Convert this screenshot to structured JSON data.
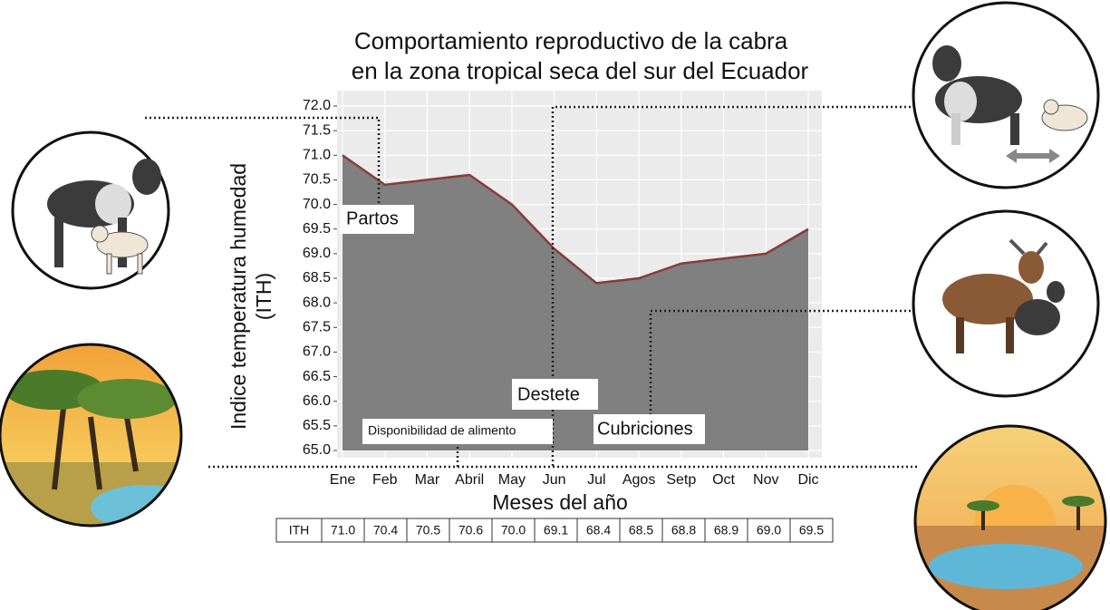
{
  "chart_data": {
    "type": "area",
    "title": [
      "Comportamiento reproductivo de la cabra",
      "en la zona tropical seca del sur del Ecuador"
    ],
    "xlabel": "Meses del año",
    "ylabel": [
      "Indice temperatura humedad",
      "(ITH)"
    ],
    "categories": [
      "Ene",
      "Feb",
      "Mar",
      "Abril",
      "May",
      "Jun",
      "Jul",
      "Agos",
      "Setp",
      "Oct",
      "Nov",
      "Dic"
    ],
    "values": [
      71.0,
      70.4,
      70.5,
      70.6,
      70.0,
      69.1,
      68.4,
      68.5,
      68.8,
      68.9,
      69.0,
      69.5
    ],
    "value_labels": [
      "71.0",
      "70.4",
      "70.5",
      "70.6",
      "70.0",
      "69.1",
      "68.4",
      "68.5",
      "68.8",
      "68.9",
      "69.0",
      "69.5"
    ],
    "table_label": "ITH",
    "fill_color": "#808080",
    "line_color": "#8b3a3a",
    "ylim": [
      65,
      72
    ],
    "yticks": [
      {
        "value": 65,
        "label": "65.0"
      },
      65.5,
      {
        "value": 66,
        "label": "66.0"
      },
      66.5,
      {
        "value": 67,
        "label": "67.0"
      },
      67.5,
      {
        "value": 68,
        "label": "68.0"
      },
      68.5,
      {
        "value": 69,
        "label": "69.0"
      },
      69.5,
      {
        "value": 70,
        "label": "70.0"
      },
      70.5,
      {
        "value": 71,
        "label": "71.0"
      },
      71.5,
      {
        "value": 72,
        "label": "72.0"
      }
    ],
    "grid": true,
    "annotations": [
      "Partos",
      "Destete",
      "Cubriciones",
      "Disponibilidad de alimento"
    ]
  }
}
